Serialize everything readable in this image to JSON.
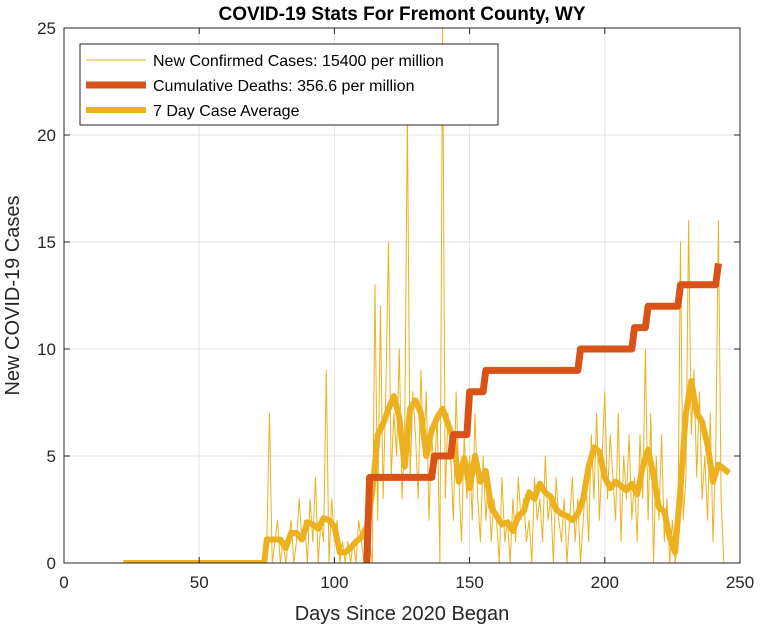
{
  "chart_data": {
    "type": "line",
    "title": "COVID-19 Stats For Fremont County, WY",
    "xlabel": "Days Since 2020 Began",
    "ylabel": "New COVID-19 Cases",
    "xlim": [
      0,
      250
    ],
    "ylim": [
      0,
      25
    ],
    "xticks": [
      "0",
      "50",
      "100",
      "150",
      "200",
      "250"
    ],
    "yticks": [
      "0",
      "5",
      "10",
      "15",
      "20",
      "25"
    ],
    "grid": true,
    "legend_position": "top-left",
    "series": [
      {
        "name": "New Confirmed Cases: 15400 per million",
        "color": "#EDB120",
        "style": "thin",
        "points": [
          [
            22,
            0
          ],
          [
            30,
            0
          ],
          [
            40,
            0
          ],
          [
            50,
            0
          ],
          [
            60,
            0
          ],
          [
            70,
            0
          ],
          [
            74,
            0
          ],
          [
            75,
            1
          ],
          [
            76,
            7
          ],
          [
            77,
            0
          ],
          [
            78,
            1
          ],
          [
            79,
            2
          ],
          [
            80,
            0
          ],
          [
            81,
            1
          ],
          [
            82,
            0
          ],
          [
            83,
            1
          ],
          [
            84,
            2
          ],
          [
            85,
            0
          ],
          [
            86,
            1
          ],
          [
            87,
            3
          ],
          [
            88,
            1
          ],
          [
            89,
            2
          ],
          [
            90,
            0
          ],
          [
            91,
            3
          ],
          [
            92,
            1
          ],
          [
            93,
            4
          ],
          [
            94,
            0
          ],
          [
            95,
            2
          ],
          [
            96,
            1
          ],
          [
            97,
            9
          ],
          [
            98,
            0
          ],
          [
            99,
            3
          ],
          [
            100,
            1
          ],
          [
            101,
            2
          ],
          [
            102,
            0
          ],
          [
            103,
            1
          ],
          [
            104,
            0
          ],
          [
            105,
            1
          ],
          [
            106,
            0
          ],
          [
            107,
            1
          ],
          [
            108,
            0
          ],
          [
            109,
            2
          ],
          [
            110,
            1
          ],
          [
            111,
            0
          ],
          [
            112,
            3
          ],
          [
            113,
            1
          ],
          [
            114,
            0
          ],
          [
            115,
            13
          ],
          [
            116,
            2
          ],
          [
            117,
            12
          ],
          [
            118,
            3
          ],
          [
            119,
            8
          ],
          [
            120,
            15
          ],
          [
            121,
            4
          ],
          [
            122,
            7
          ],
          [
            123,
            5
          ],
          [
            124,
            10
          ],
          [
            125,
            3
          ],
          [
            126,
            6
          ],
          [
            127,
            21
          ],
          [
            128,
            4
          ],
          [
            129,
            8
          ],
          [
            130,
            6
          ],
          [
            131,
            3
          ],
          [
            132,
            9
          ],
          [
            133,
            5
          ],
          [
            134,
            8
          ],
          [
            135,
            2
          ],
          [
            136,
            6
          ],
          [
            137,
            4
          ],
          [
            138,
            7
          ],
          [
            139,
            0
          ],
          [
            140,
            25
          ],
          [
            141,
            3
          ],
          [
            142,
            7
          ],
          [
            143,
            5
          ],
          [
            144,
            2
          ],
          [
            145,
            8
          ],
          [
            146,
            4
          ],
          [
            147,
            1
          ],
          [
            148,
            6
          ],
          [
            149,
            3
          ],
          [
            150,
            5
          ],
          [
            151,
            2
          ],
          [
            152,
            7
          ],
          [
            153,
            3
          ],
          [
            154,
            1
          ],
          [
            155,
            5
          ],
          [
            156,
            2
          ],
          [
            157,
            4
          ],
          [
            158,
            1
          ],
          [
            159,
            3
          ],
          [
            160,
            2
          ],
          [
            161,
            0
          ],
          [
            162,
            4
          ],
          [
            163,
            1
          ],
          [
            164,
            2
          ],
          [
            165,
            0
          ],
          [
            166,
            3
          ],
          [
            167,
            1
          ],
          [
            168,
            4
          ],
          [
            169,
            2
          ],
          [
            170,
            3
          ],
          [
            171,
            1
          ],
          [
            172,
            2
          ],
          [
            173,
            0
          ],
          [
            174,
            4
          ],
          [
            175,
            2
          ],
          [
            176,
            3
          ],
          [
            177,
            1
          ],
          [
            178,
            5
          ],
          [
            179,
            2
          ],
          [
            180,
            3
          ],
          [
            181,
            0
          ],
          [
            182,
            4
          ],
          [
            183,
            2
          ],
          [
            184,
            1
          ],
          [
            185,
            3
          ],
          [
            186,
            0
          ],
          [
            187,
            2
          ],
          [
            188,
            4
          ],
          [
            189,
            1
          ],
          [
            190,
            3
          ],
          [
            191,
            0
          ],
          [
            192,
            2
          ],
          [
            193,
            4
          ],
          [
            194,
            1
          ],
          [
            195,
            6
          ],
          [
            196,
            3
          ],
          [
            197,
            7
          ],
          [
            198,
            2
          ],
          [
            199,
            5
          ],
          [
            200,
            8
          ],
          [
            201,
            3
          ],
          [
            202,
            6
          ],
          [
            203,
            4
          ],
          [
            204,
            2
          ],
          [
            205,
            7
          ],
          [
            206,
            1
          ],
          [
            207,
            5
          ],
          [
            208,
            3
          ],
          [
            209,
            6
          ],
          [
            210,
            2
          ],
          [
            211,
            4
          ],
          [
            212,
            1
          ],
          [
            213,
            6
          ],
          [
            214,
            3
          ],
          [
            215,
            10
          ],
          [
            216,
            2
          ],
          [
            217,
            7
          ],
          [
            218,
            0
          ],
          [
            219,
            5
          ],
          [
            220,
            2
          ],
          [
            221,
            6
          ],
          [
            222,
            1
          ],
          [
            223,
            3
          ],
          [
            224,
            0
          ],
          [
            225,
            2
          ],
          [
            226,
            0
          ],
          [
            227,
            1
          ],
          [
            228,
            15
          ],
          [
            229,
            2
          ],
          [
            230,
            4
          ],
          [
            231,
            16
          ],
          [
            232,
            6
          ],
          [
            233,
            9
          ],
          [
            234,
            4
          ],
          [
            235,
            8
          ],
          [
            236,
            3
          ],
          [
            237,
            5
          ],
          [
            238,
            2
          ],
          [
            239,
            7
          ],
          [
            240,
            1
          ],
          [
            241,
            5
          ],
          [
            242,
            16
          ],
          [
            243,
            3
          ],
          [
            244,
            0
          ]
        ]
      },
      {
        "name": "Cumulative Deaths: 356.6 per million",
        "color": "#D95319",
        "style": "thick",
        "points": [
          [
            112,
            0
          ],
          [
            113,
            4
          ],
          [
            136,
            4
          ],
          [
            137,
            5
          ],
          [
            143,
            5
          ],
          [
            144,
            6
          ],
          [
            149,
            6
          ],
          [
            150,
            8
          ],
          [
            155,
            8
          ],
          [
            156,
            9
          ],
          [
            190,
            9
          ],
          [
            191,
            10
          ],
          [
            210,
            10
          ],
          [
            211,
            11
          ],
          [
            215,
            11
          ],
          [
            216,
            12
          ],
          [
            227,
            12
          ],
          [
            228,
            13
          ],
          [
            241,
            13
          ],
          [
            242,
            14
          ]
        ]
      },
      {
        "name": "7 Day Case Average",
        "color": "#EDB120",
        "style": "medium",
        "points": [
          [
            22,
            0
          ],
          [
            40,
            0
          ],
          [
            60,
            0
          ],
          [
            74,
            0
          ],
          [
            75,
            1.1
          ],
          [
            80,
            1.1
          ],
          [
            82,
            0.7
          ],
          [
            84,
            1.4
          ],
          [
            86,
            1.4
          ],
          [
            88,
            1.1
          ],
          [
            90,
            1.9
          ],
          [
            92,
            1.8
          ],
          [
            94,
            1.6
          ],
          [
            96,
            2.1
          ],
          [
            98,
            2.0
          ],
          [
            100,
            1.7
          ],
          [
            102,
            0.5
          ],
          [
            104,
            0.5
          ],
          [
            106,
            0.7
          ],
          [
            108,
            1.0
          ],
          [
            110,
            1.2
          ],
          [
            112,
            1.7
          ],
          [
            114,
            3.3
          ],
          [
            116,
            6.0
          ],
          [
            118,
            6.5
          ],
          [
            120,
            7.2
          ],
          [
            122,
            7.8
          ],
          [
            124,
            6.8
          ],
          [
            126,
            4.5
          ],
          [
            128,
            7.2
          ],
          [
            130,
            7.6
          ],
          [
            132,
            7.0
          ],
          [
            134,
            5.0
          ],
          [
            136,
            6.2
          ],
          [
            138,
            6.8
          ],
          [
            140,
            7.2
          ],
          [
            142,
            6.5
          ],
          [
            144,
            5.8
          ],
          [
            146,
            3.8
          ],
          [
            148,
            4.9
          ],
          [
            150,
            3.5
          ],
          [
            152,
            5.0
          ],
          [
            154,
            3.8
          ],
          [
            156,
            4.3
          ],
          [
            158,
            2.6
          ],
          [
            160,
            2.2
          ],
          [
            162,
            1.8
          ],
          [
            164,
            1.9
          ],
          [
            166,
            1.5
          ],
          [
            168,
            2.2
          ],
          [
            170,
            2.4
          ],
          [
            172,
            3.3
          ],
          [
            174,
            3.0
          ],
          [
            176,
            3.7
          ],
          [
            178,
            3.3
          ],
          [
            180,
            3.1
          ],
          [
            182,
            2.5
          ],
          [
            184,
            2.3
          ],
          [
            186,
            2.2
          ],
          [
            188,
            2.0
          ],
          [
            190,
            2.3
          ],
          [
            192,
            3.0
          ],
          [
            194,
            4.5
          ],
          [
            196,
            5.4
          ],
          [
            198,
            5.2
          ],
          [
            200,
            4.0
          ],
          [
            202,
            3.5
          ],
          [
            204,
            3.8
          ],
          [
            206,
            3.6
          ],
          [
            208,
            3.4
          ],
          [
            210,
            3.7
          ],
          [
            212,
            3.2
          ],
          [
            214,
            4.5
          ],
          [
            216,
            5.3
          ],
          [
            218,
            4.1
          ],
          [
            220,
            2.6
          ],
          [
            222,
            2.4
          ],
          [
            224,
            1.2
          ],
          [
            226,
            0.5
          ],
          [
            228,
            3.5
          ],
          [
            230,
            7.0
          ],
          [
            232,
            8.5
          ],
          [
            234,
            7.0
          ],
          [
            236,
            6.6
          ],
          [
            238,
            5.5
          ],
          [
            240,
            3.8
          ],
          [
            242,
            4.6
          ],
          [
            244,
            4.4
          ],
          [
            246,
            4.2
          ]
        ]
      }
    ]
  }
}
